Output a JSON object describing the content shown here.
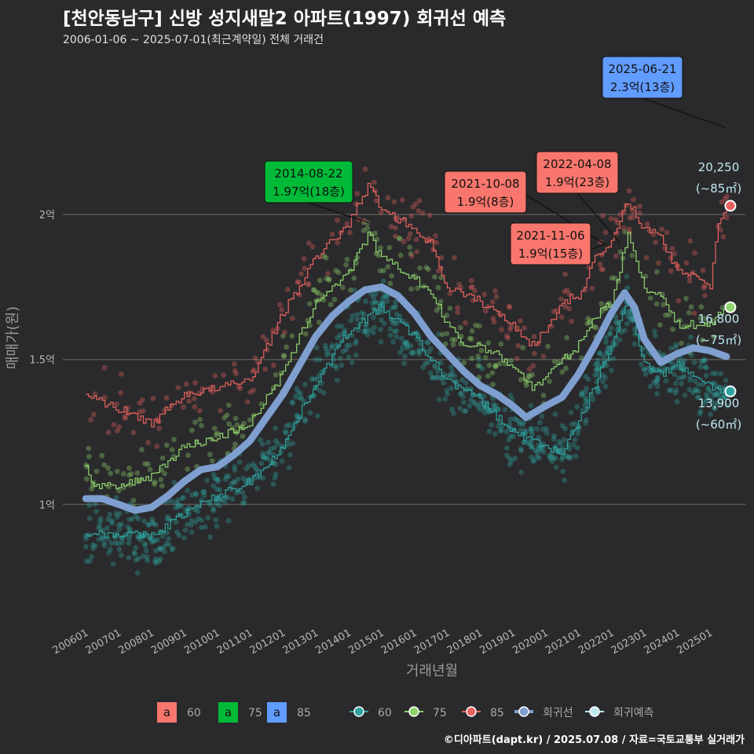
{
  "header": {
    "title": "[천안동남구] 신방 성지새말2 아파트(1997) 회귀선 예측",
    "subtitle": "2006-01-06 ~ 2025-07-01(최근계약일) 전체 거래건"
  },
  "footer": "©디아파트(dapt.kr) / 2025.07.08 / 자료=국토교통부 실거래가",
  "colors": {
    "s60": "#2ea3a0",
    "s75": "#8fd46e",
    "s85": "#e8625e",
    "regression": "#7e9fcf",
    "forecast": "#bfe8f0",
    "ann60": "#f8766d",
    "ann75": "#00ba38",
    "ann85": "#619cff",
    "grid": "#555555"
  },
  "chart_data": {
    "type": "scatter",
    "xlabel": "거래년월",
    "ylabel": "매매가(원)",
    "x_range": [
      2006.0,
      2025.6
    ],
    "ylim": [
      0.6,
      2.55
    ],
    "x_ticks": [
      "200601",
      "200701",
      "200801",
      "200901",
      "201001",
      "201101",
      "201201",
      "201301",
      "201401",
      "201501",
      "201601",
      "201701",
      "201801",
      "201901",
      "202001",
      "202101",
      "202201",
      "202301",
      "202401",
      "202501"
    ],
    "y_ticks": [
      {
        "value": 1.0,
        "label": "1억"
      },
      {
        "value": 1.5,
        "label": "1.5억"
      },
      {
        "value": 2.0,
        "label": "2억"
      }
    ],
    "series": [
      {
        "name": "60",
        "key": "s60",
        "trend": [
          [
            2006.0,
            0.9
          ],
          [
            2007.0,
            0.9
          ],
          [
            2008.0,
            0.89
          ],
          [
            2009.0,
            0.97
          ],
          [
            2010.0,
            1.03
          ],
          [
            2011.0,
            1.08
          ],
          [
            2012.0,
            1.2
          ],
          [
            2013.0,
            1.42
          ],
          [
            2014.0,
            1.6
          ],
          [
            2015.0,
            1.68
          ],
          [
            2016.0,
            1.58
          ],
          [
            2016.5,
            1.5
          ],
          [
            2017.0,
            1.43
          ],
          [
            2018.0,
            1.36
          ],
          [
            2019.0,
            1.25
          ],
          [
            2020.0,
            1.2
          ],
          [
            2020.5,
            1.18
          ],
          [
            2021.0,
            1.28
          ],
          [
            2022.0,
            1.55
          ],
          [
            2022.5,
            1.7
          ],
          [
            2023.0,
            1.49
          ],
          [
            2023.5,
            1.45
          ],
          [
            2024.0,
            1.48
          ],
          [
            2024.5,
            1.45
          ],
          [
            2025.0,
            1.41
          ],
          [
            2025.5,
            1.39
          ]
        ]
      },
      {
        "name": "75",
        "key": "s75",
        "trend": [
          [
            2006.0,
            1.14
          ],
          [
            2006.2,
            1.06
          ],
          [
            2007.0,
            1.06
          ],
          [
            2008.0,
            1.1
          ],
          [
            2009.0,
            1.2
          ],
          [
            2010.0,
            1.23
          ],
          [
            2011.0,
            1.28
          ],
          [
            2012.0,
            1.45
          ],
          [
            2013.0,
            1.7
          ],
          [
            2014.0,
            1.8
          ],
          [
            2014.6,
            1.93
          ],
          [
            2015.0,
            1.85
          ],
          [
            2016.0,
            1.78
          ],
          [
            2016.5,
            1.73
          ],
          [
            2017.0,
            1.62
          ],
          [
            2017.5,
            1.55
          ],
          [
            2018.0,
            1.55
          ],
          [
            2019.0,
            1.48
          ],
          [
            2019.6,
            1.4
          ],
          [
            2020.0,
            1.44
          ],
          [
            2021.0,
            1.55
          ],
          [
            2021.5,
            1.65
          ],
          [
            2022.0,
            1.7
          ],
          [
            2022.5,
            1.93
          ],
          [
            2023.0,
            1.75
          ],
          [
            2023.5,
            1.72
          ],
          [
            2024.0,
            1.62
          ],
          [
            2024.5,
            1.62
          ],
          [
            2025.0,
            1.62
          ],
          [
            2025.5,
            1.68
          ]
        ]
      },
      {
        "name": "85",
        "key": "s85",
        "trend": [
          [
            2006.0,
            1.38
          ],
          [
            2007.0,
            1.33
          ],
          [
            2008.0,
            1.28
          ],
          [
            2009.0,
            1.38
          ],
          [
            2010.0,
            1.4
          ],
          [
            2011.0,
            1.43
          ],
          [
            2012.0,
            1.66
          ],
          [
            2013.0,
            1.85
          ],
          [
            2014.0,
            1.97
          ],
          [
            2014.6,
            2.1
          ],
          [
            2015.0,
            2.02
          ],
          [
            2016.0,
            1.95
          ],
          [
            2016.5,
            1.9
          ],
          [
            2017.0,
            1.75
          ],
          [
            2018.0,
            1.7
          ],
          [
            2019.0,
            1.62
          ],
          [
            2019.6,
            1.55
          ],
          [
            2020.0,
            1.6
          ],
          [
            2020.5,
            1.7
          ],
          [
            2021.0,
            1.72
          ],
          [
            2021.5,
            1.85
          ],
          [
            2022.0,
            1.9
          ],
          [
            2022.5,
            2.05
          ],
          [
            2023.0,
            1.95
          ],
          [
            2023.5,
            1.92
          ],
          [
            2024.0,
            1.8
          ],
          [
            2024.5,
            1.8
          ],
          [
            2025.0,
            1.75
          ],
          [
            2025.2,
            1.95
          ],
          [
            2025.5,
            2.03
          ]
        ]
      },
      {
        "name": "회귀선",
        "key": "regression",
        "trend": [
          [
            2006.0,
            1.02
          ],
          [
            2006.5,
            1.02
          ],
          [
            2007.0,
            1.0
          ],
          [
            2007.5,
            0.98
          ],
          [
            2008.0,
            0.99
          ],
          [
            2008.5,
            1.03
          ],
          [
            2009.0,
            1.08
          ],
          [
            2009.5,
            1.12
          ],
          [
            2010.0,
            1.13
          ],
          [
            2010.5,
            1.17
          ],
          [
            2011.0,
            1.22
          ],
          [
            2011.5,
            1.3
          ],
          [
            2012.0,
            1.38
          ],
          [
            2012.5,
            1.48
          ],
          [
            2013.0,
            1.58
          ],
          [
            2013.5,
            1.65
          ],
          [
            2014.0,
            1.7
          ],
          [
            2014.5,
            1.74
          ],
          [
            2015.0,
            1.75
          ],
          [
            2015.5,
            1.72
          ],
          [
            2016.0,
            1.66
          ],
          [
            2016.5,
            1.58
          ],
          [
            2017.0,
            1.52
          ],
          [
            2017.5,
            1.46
          ],
          [
            2018.0,
            1.41
          ],
          [
            2018.5,
            1.38
          ],
          [
            2019.0,
            1.34
          ],
          [
            2019.4,
            1.3
          ],
          [
            2020.0,
            1.34
          ],
          [
            2020.5,
            1.37
          ],
          [
            2021.0,
            1.45
          ],
          [
            2021.5,
            1.55
          ],
          [
            2022.0,
            1.66
          ],
          [
            2022.4,
            1.73
          ],
          [
            2022.7,
            1.68
          ],
          [
            2023.0,
            1.57
          ],
          [
            2023.5,
            1.49
          ],
          [
            2024.0,
            1.52
          ],
          [
            2024.5,
            1.54
          ],
          [
            2025.0,
            1.53
          ],
          [
            2025.5,
            1.51
          ]
        ]
      }
    ],
    "end_labels": [
      {
        "key": "s85",
        "price": "20,250",
        "area": "(~85㎡)",
        "y": 2.03
      },
      {
        "key": "s75",
        "price": "16,800",
        "area": "(~75㎡)",
        "y": 1.68
      },
      {
        "key": "s60",
        "price": "13,900",
        "area": "(~60㎡)",
        "y": 1.39
      }
    ],
    "annotations": [
      {
        "date": "2025-06-21",
        "value": "2.3억(13층)",
        "key": "ann85",
        "x": 2025.47,
        "y": 2.3
      },
      {
        "date": "2014-08-22",
        "value": "1.97억(18층)",
        "key": "ann75",
        "x": 2014.64,
        "y": 1.97
      },
      {
        "date": "2022-04-08",
        "value": "1.9억(23층)",
        "key": "ann60",
        "x": 2022.27,
        "y": 1.9
      },
      {
        "date": "2021-10-08",
        "value": "1.9억(8층)",
        "key": "ann60",
        "x": 2021.77,
        "y": 1.9
      },
      {
        "date": "2021-11-06",
        "value": "1.9억(15층)",
        "key": "ann60",
        "x": 2021.85,
        "y": 1.9
      }
    ],
    "legend": [
      {
        "type": "box",
        "label": "60",
        "key": "ann60"
      },
      {
        "type": "box",
        "label": "75",
        "key": "ann75"
      },
      {
        "type": "box",
        "label": "85",
        "key": "ann85"
      },
      {
        "type": "line",
        "label": "60",
        "key": "s60"
      },
      {
        "type": "line",
        "label": "75",
        "key": "s75"
      },
      {
        "type": "line",
        "label": "85",
        "key": "s85"
      },
      {
        "type": "line",
        "label": "회귀선",
        "key": "regression"
      },
      {
        "type": "line",
        "label": "회귀예측",
        "key": "forecast"
      }
    ],
    "legend_position": "bottom"
  }
}
